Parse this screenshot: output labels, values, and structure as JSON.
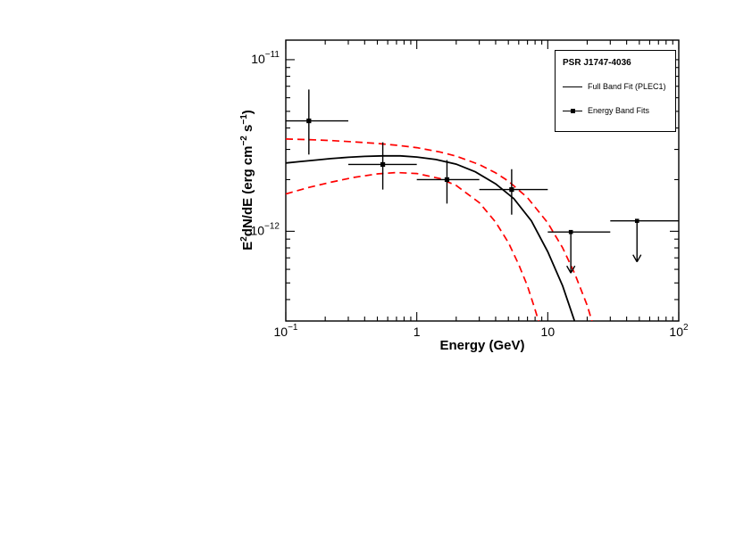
{
  "chart": {
    "xlabel": "Energy (GeV)",
    "ylabel": {
      "p1": "E",
      "sup1": "2",
      "p2": "dN/dE (erg cm",
      "sup2": "−2",
      "p3": " s",
      "sup3": "−1",
      "p4": ")"
    },
    "legend": {
      "title": "PSR J1747-4036",
      "entries": [
        {
          "label": "Full Band Fit (PLEC1)",
          "sample": "line"
        },
        {
          "label": "Energy Band Fits",
          "sample": "line-with-square-marker"
        }
      ]
    },
    "colors": {
      "axis": "#000000",
      "fit_curve": "#000000",
      "confidence_band": "#ff0000",
      "data_points": "#000000"
    }
  },
  "chart_data": {
    "type": "line+scatter",
    "title": "PSR J1747-4036",
    "x_axis": {
      "label": "Energy (GeV)",
      "scale": "log",
      "range": [
        0.1,
        100
      ],
      "ticks": [
        {
          "value": 0.1,
          "base": "10",
          "sup": "−1"
        },
        {
          "value": 1,
          "base": "1",
          "sup": ""
        },
        {
          "value": 10,
          "base": "10",
          "sup": ""
        },
        {
          "value": 100,
          "base": "10",
          "sup": "2"
        }
      ]
    },
    "y_axis": {
      "label": "E^2 dN/dE (erg cm^-2 s^-1)",
      "scale": "log",
      "range": [
        3e-13,
        1.3e-11
      ],
      "ticks": [
        {
          "value": 1e-12,
          "base": "10",
          "sup": "−12"
        },
        {
          "value": 1e-11,
          "base": "10",
          "sup": "−11"
        }
      ]
    },
    "series": [
      {
        "id": "fit-curve",
        "name": "Full Band Fit (PLEC1)",
        "style": "solid",
        "color": "#000000",
        "points": [
          [
            0.1,
            2.5e-12
          ],
          [
            0.13,
            2.55e-12
          ],
          [
            0.17,
            2.6e-12
          ],
          [
            0.22,
            2.65e-12
          ],
          [
            0.3,
            2.7e-12
          ],
          [
            0.4,
            2.73e-12
          ],
          [
            0.55,
            2.75e-12
          ],
          [
            0.75,
            2.75e-12
          ],
          [
            1.0,
            2.71e-12
          ],
          [
            1.4,
            2.62e-12
          ],
          [
            2.0,
            2.46e-12
          ],
          [
            2.8,
            2.22e-12
          ],
          [
            4.0,
            1.89e-12
          ],
          [
            5.5,
            1.55e-12
          ],
          [
            7.5,
            1.15e-12
          ],
          [
            10,
            7.6e-13
          ],
          [
            13,
            4.8e-13
          ],
          [
            16,
            3e-13
          ],
          [
            18,
            2.2e-13
          ]
        ]
      },
      {
        "id": "confidence-band-upper",
        "name": "Fit uncertainty (upper)",
        "style": "dashed",
        "color": "#ff0000",
        "points": [
          [
            0.1,
            3.45e-12
          ],
          [
            0.15,
            3.42e-12
          ],
          [
            0.22,
            3.38e-12
          ],
          [
            0.33,
            3.32e-12
          ],
          [
            0.5,
            3.25e-12
          ],
          [
            0.7,
            3.17e-12
          ],
          [
            1.0,
            3.07e-12
          ],
          [
            1.5,
            2.9e-12
          ],
          [
            2.0,
            2.74e-12
          ],
          [
            3.0,
            2.45e-12
          ],
          [
            4.0,
            2.19e-12
          ],
          [
            5.0,
            1.96e-12
          ],
          [
            7.0,
            1.57e-12
          ],
          [
            10,
            1.12e-12
          ],
          [
            13,
            8e-13
          ],
          [
            16,
            5.7e-13
          ],
          [
            20,
            3.7e-13
          ],
          [
            25,
            2.1e-13
          ]
        ]
      },
      {
        "id": "confidence-band-lower",
        "name": "Fit uncertainty (lower)",
        "style": "dashed",
        "color": "#ff0000",
        "points": [
          [
            0.1,
            1.65e-12
          ],
          [
            0.15,
            1.8e-12
          ],
          [
            0.22,
            1.93e-12
          ],
          [
            0.33,
            2.06e-12
          ],
          [
            0.5,
            2.16e-12
          ],
          [
            0.7,
            2.2e-12
          ],
          [
            1.0,
            2.17e-12
          ],
          [
            1.5,
            2.03e-12
          ],
          [
            2.0,
            1.85e-12
          ],
          [
            3.0,
            1.47e-12
          ],
          [
            4.0,
            1.13e-12
          ],
          [
            5.0,
            8.6e-13
          ],
          [
            6.0,
            6.4e-13
          ],
          [
            7.0,
            4.8e-13
          ],
          [
            8.0,
            3.5e-13
          ],
          [
            9.0,
            2.6e-13
          ]
        ]
      }
    ],
    "data_points": [
      {
        "x": 0.15,
        "x_lo": 0.1,
        "x_hi": 0.3,
        "y": 4.4e-12,
        "y_lo": 2.8e-12,
        "y_hi": 6.7e-12
      },
      {
        "x": 0.55,
        "x_lo": 0.3,
        "x_hi": 1.0,
        "y": 2.45e-12,
        "y_lo": 1.75e-12,
        "y_hi": 3.3e-12
      },
      {
        "x": 1.7,
        "x_lo": 1.0,
        "x_hi": 3.0,
        "y": 2e-12,
        "y_lo": 1.45e-12,
        "y_hi": 2.6e-12
      },
      {
        "x": 5.3,
        "x_lo": 3.0,
        "x_hi": 10.0,
        "y": 1.75e-12,
        "y_lo": 1.25e-12,
        "y_hi": 2.3e-12
      }
    ],
    "upper_limits": [
      {
        "x": 15,
        "x_lo": 10,
        "x_hi": 30,
        "y": 9.9e-13
      },
      {
        "x": 48,
        "x_lo": 30,
        "x_hi": 100,
        "y": 1.15e-12
      }
    ]
  }
}
